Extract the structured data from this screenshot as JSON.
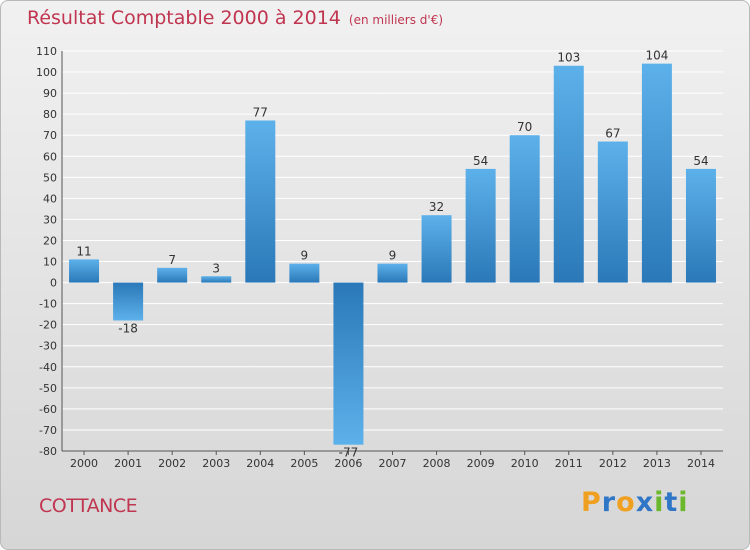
{
  "header": {
    "title": "Résultat Comptable 2000 à 2014",
    "subtitle": "(en milliers d'€)"
  },
  "footer": {
    "commune": "COTTANCE",
    "logo_text": "Proxiti"
  },
  "colors": {
    "title": "#c0354f",
    "bar_light": "#5db1ea",
    "bar_dark": "#2a78b8",
    "grid": "#ffffff",
    "logo_letters": [
      "#f0a020",
      "#2f76c7",
      "#f0a020",
      "#2f76c7",
      "#6bb82c",
      "#2f76c7",
      "#6bb82c"
    ]
  },
  "chart_data": {
    "type": "bar",
    "title": "Résultat Comptable 2000 à 2014",
    "subtitle": "(en milliers d'€)",
    "categories": [
      "2000",
      "2001",
      "2002",
      "2003",
      "2004",
      "2005",
      "2006",
      "2007",
      "2008",
      "2009",
      "2010",
      "2011",
      "2012",
      "2013",
      "2014"
    ],
    "values": [
      11,
      -18,
      7,
      3,
      77,
      9,
      -77,
      9,
      32,
      54,
      70,
      103,
      67,
      104,
      54
    ],
    "ylim": [
      -80,
      110
    ],
    "yticks": [
      110,
      100,
      90,
      80,
      70,
      60,
      50,
      40,
      30,
      20,
      10,
      0,
      -10,
      -20,
      -30,
      -40,
      -50,
      -60,
      -70,
      -80
    ],
    "grid": true,
    "xlabel": "",
    "ylabel": ""
  }
}
